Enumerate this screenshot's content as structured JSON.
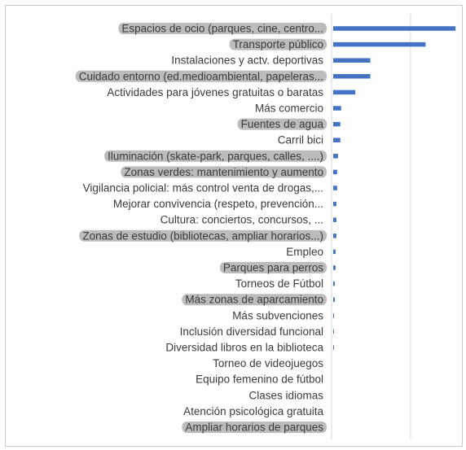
{
  "chart_data": {
    "type": "bar",
    "orientation": "horizontal",
    "title": "",
    "xlabel": "",
    "ylabel": "",
    "categories": [
      "Espacios de ocio (parques, cine, centro...",
      "Transporte público",
      "Instalaciones y actv. deportivas",
      "Cuidado entorno (ed.medioambiental, papeleras...",
      "Actividades para jóvenes gratuitas o baratas",
      "Más comercio",
      "Fuentes de agua",
      "Carril bici",
      "Iluminación (skate-park, parques, calles, ....)",
      "Zonas verdes: mantenimiento y aumento",
      "Vigilancia policial: más control venta de drogas,...",
      "Mejorar convivencia (respeto, prevención...",
      "Cultura: conciertos, concursos, ...",
      "Zonas de estudio (bibliotecas, ampliar horarios...)",
      "Empleo",
      "Parques  para perros",
      "Torneos de Fútbol",
      "Más zonas de aparcamiento",
      "Más subvenciones",
      "Inclusión diversidad funcional",
      "Diversidad libros en la biblioteca",
      "Torneo de videojuegos",
      "Equipo femenino de fútbol",
      "Clases idiomas",
      "Atención psicológica gratuita",
      "Ampliar horarios de parques"
    ],
    "values": [
      155,
      117,
      47,
      47,
      28,
      10,
      9,
      9,
      6,
      5,
      5,
      4,
      4,
      4,
      3,
      3,
      2,
      2,
      1,
      1,
      1,
      0,
      0,
      0,
      0,
      0
    ],
    "highlighted": [
      true,
      true,
      false,
      true,
      false,
      false,
      true,
      false,
      true,
      true,
      false,
      false,
      false,
      true,
      false,
      true,
      false,
      true,
      false,
      false,
      false,
      false,
      false,
      false,
      false,
      true
    ],
    "xlim": [
      0,
      160
    ],
    "gridlines_x": [
      0,
      100
    ],
    "grid": true,
    "legend": "none",
    "colors": {
      "bar": "#4472c4",
      "grid": "#d9d9d9",
      "highlight": "#a6a6a6",
      "text": "#3a3a3a"
    }
  }
}
